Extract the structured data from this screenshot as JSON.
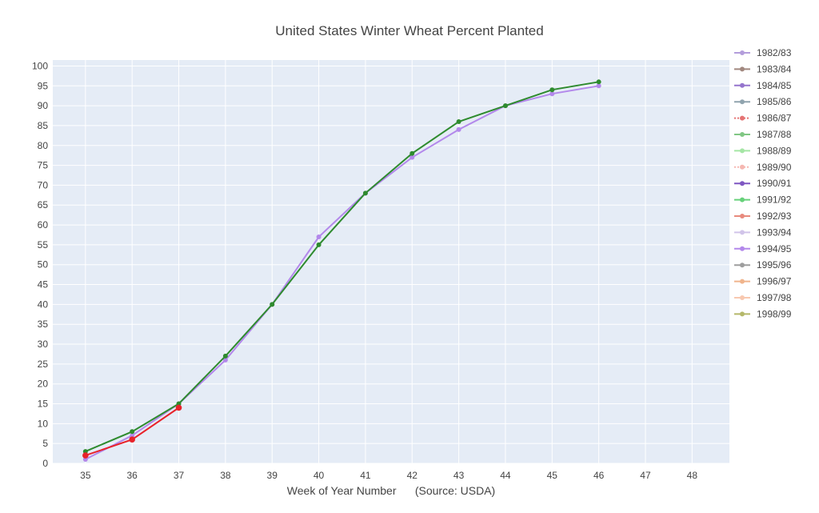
{
  "chart_data": {
    "type": "line",
    "title": "United States Winter Wheat Percent Planted",
    "xlabel": "Week of Year Number      (Source: USDA)",
    "ylabel": "",
    "xlim": [
      34.3,
      48.8
    ],
    "ylim": [
      0,
      101.5
    ],
    "xticks": [
      35,
      36,
      37,
      38,
      39,
      40,
      41,
      42,
      43,
      44,
      45,
      46,
      47,
      48
    ],
    "yticks": [
      0,
      5,
      10,
      15,
      20,
      25,
      30,
      35,
      40,
      45,
      50,
      55,
      60,
      65,
      70,
      75,
      80,
      85,
      90,
      95,
      100
    ],
    "grid": true,
    "legend_position": "right",
    "background_color": "#e5ecf6",
    "series": [
      {
        "name": "1982/83",
        "color": "#b39ddb",
        "dash": "solid",
        "x": [],
        "y": []
      },
      {
        "name": "1983/84",
        "color": "#a1887f",
        "dash": "solid",
        "x": [],
        "y": []
      },
      {
        "name": "1984/85",
        "color": "#9575cd",
        "dash": "solid",
        "x": [],
        "y": []
      },
      {
        "name": "1985/86",
        "color": "#90a4ae",
        "dash": "solid",
        "x": [],
        "y": []
      },
      {
        "name": "1986/87",
        "color": "#e57373",
        "dash": "dot",
        "x": [],
        "y": []
      },
      {
        "name": "1987/88",
        "color": "#81c784",
        "dash": "solid",
        "x": [],
        "y": []
      },
      {
        "name": "1988/89",
        "color": "#a5e6a5",
        "dash": "solid",
        "x": [],
        "y": []
      },
      {
        "name": "1989/90",
        "color": "#f5b7b1",
        "dash": "dot",
        "x": [],
        "y": []
      },
      {
        "name": "1990/91",
        "color": "#7e57c2",
        "dash": "solid",
        "x": [],
        "y": []
      },
      {
        "name": "1991/92",
        "color": "#66d17a",
        "dash": "solid",
        "x": [],
        "y": []
      },
      {
        "name": "1992/93",
        "color": "#e88a7d",
        "dash": "solid",
        "x": [],
        "y": []
      },
      {
        "name": "1993/94",
        "color": "#d1c4e9",
        "dash": "solid",
        "x": [],
        "y": []
      },
      {
        "name": "1994/95",
        "color": "#b388eb",
        "dash": "solid",
        "x": [
          35,
          36,
          37,
          38,
          39,
          40,
          41,
          42,
          43,
          44,
          45,
          46
        ],
        "y": [
          1,
          7,
          15,
          26,
          40,
          57,
          68,
          77,
          84,
          90,
          93,
          95
        ]
      },
      {
        "name": "1995/96",
        "color": "#9e9e9e",
        "dash": "solid",
        "x": [],
        "y": []
      },
      {
        "name": "1996/97",
        "color": "#f0b48c",
        "dash": "solid",
        "x": [],
        "y": []
      },
      {
        "name": "1997/98",
        "color": "#f8c8b0",
        "dash": "solid",
        "x": [],
        "y": []
      },
      {
        "name": "1998/99",
        "color": "#b5b86a",
        "dash": "solid",
        "x": [],
        "y": []
      },
      {
        "name": "",
        "color": "#2e8b2e",
        "dash": "solid",
        "x": [
          35,
          36,
          37,
          38,
          39,
          40,
          41,
          42,
          43,
          44,
          45,
          46
        ],
        "y": [
          3,
          8,
          15,
          27,
          40,
          55,
          68,
          78,
          86,
          90,
          94,
          96
        ]
      },
      {
        "name": "",
        "color": "#e8222a",
        "dash": "solid",
        "marker_size": 3.8,
        "x": [
          35,
          36,
          37
        ],
        "y": [
          2,
          6,
          14
        ]
      }
    ]
  }
}
